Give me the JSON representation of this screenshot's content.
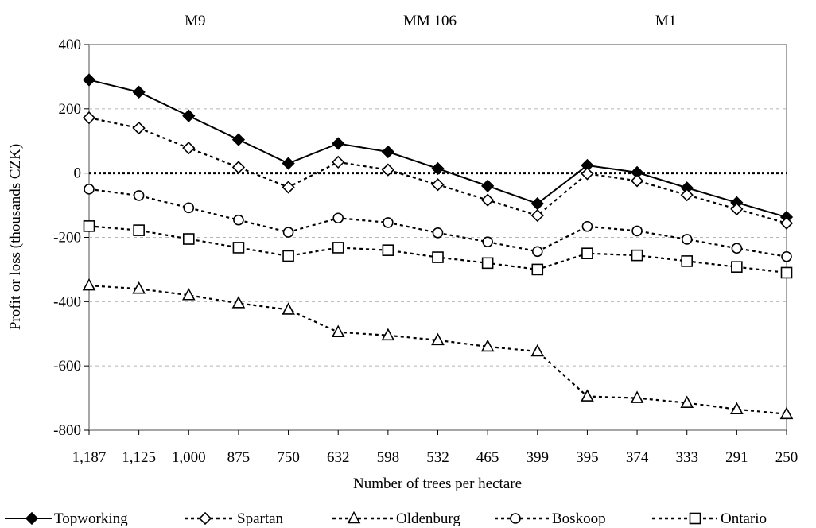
{
  "chart_data": {
    "type": "line",
    "xlabel": "Number of trees per hectare",
    "ylabel": "Profit or loss (thousands CZK)",
    "ylim": [
      -800,
      400
    ],
    "yticks": [
      -800,
      -600,
      -400,
      -200,
      0,
      200,
      400
    ],
    "grid": "horizontal dashed",
    "legend_position": "bottom",
    "categories": [
      "1,187",
      "1,125",
      "1,000",
      "875",
      "750",
      "632",
      "598",
      "532",
      "465",
      "399",
      "395",
      "374",
      "333",
      "291",
      "250"
    ],
    "group_labels": [
      "M9",
      "MM 106",
      "M1"
    ],
    "series": [
      {
        "name": "Topworking",
        "marker": "filled-diamond",
        "line": "solid",
        "values": [
          290,
          252,
          178,
          104,
          30,
          92,
          66,
          14,
          -40,
          -95,
          24,
          2,
          -46,
          -92,
          -137
        ]
      },
      {
        "name": "Spartan",
        "marker": "open-diamond",
        "line": "dashed",
        "values": [
          172,
          140,
          78,
          18,
          -44,
          34,
          10,
          -36,
          -84,
          -132,
          -2,
          -24,
          -68,
          -112,
          -156
        ]
      },
      {
        "name": "Oldenburg",
        "marker": "open-triangle",
        "line": "dashed",
        "values": [
          -350,
          -360,
          -380,
          -405,
          -425,
          -495,
          -505,
          -520,
          -540,
          -555,
          -695,
          -700,
          -715,
          -735,
          -750
        ]
      },
      {
        "name": "Boskoop",
        "marker": "open-circle",
        "line": "dashed",
        "values": [
          -50,
          -70,
          -108,
          -146,
          -184,
          -140,
          -154,
          -186,
          -214,
          -244,
          -166,
          -180,
          -206,
          -234,
          -260
        ]
      },
      {
        "name": "Ontario",
        "marker": "open-square",
        "line": "dashed",
        "values": [
          -165,
          -178,
          -205,
          -232,
          -258,
          -232,
          -240,
          -262,
          -280,
          -300,
          -250,
          -256,
          -274,
          -292,
          -310
        ]
      }
    ]
  }
}
